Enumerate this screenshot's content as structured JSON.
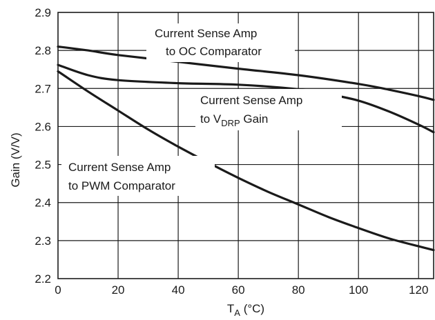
{
  "chart_data": {
    "type": "line",
    "xlabel": "T",
    "xlabel_sub": "A",
    "xlabel_unit": " (°C)",
    "ylabel": "Gain (V/V)",
    "xlim": [
      0,
      125
    ],
    "ylim": [
      2.2,
      2.9
    ],
    "xticks": [
      0,
      20,
      40,
      60,
      80,
      100,
      120
    ],
    "yticks": [
      2.2,
      2.3,
      2.4,
      2.5,
      2.6,
      2.7,
      2.8,
      2.9
    ],
    "ytick_labels": [
      "2.2",
      "2.3",
      "2.4",
      "2.5",
      "2.6",
      "2.7",
      "2.8",
      "2.9"
    ],
    "grid": true,
    "series": [
      {
        "name": "Current Sense Amp to OC Comparator",
        "x": [
          0,
          10,
          20,
          40,
          60,
          80,
          100,
          110,
          120,
          125
        ],
        "y": [
          2.81,
          2.8,
          2.788,
          2.77,
          2.752,
          2.735,
          2.712,
          2.697,
          2.68,
          2.67
        ]
      },
      {
        "name": "Current Sense Amp to VDRP Gain",
        "x": [
          0,
          10,
          20,
          40,
          60,
          80,
          90,
          100,
          110,
          120,
          125
        ],
        "y": [
          2.762,
          2.735,
          2.722,
          2.714,
          2.71,
          2.698,
          2.685,
          2.668,
          2.64,
          2.605,
          2.585
        ]
      },
      {
        "name": "Current Sense Amp to PWM Comparator",
        "x": [
          0,
          10,
          20,
          30,
          40,
          50,
          60,
          70,
          80,
          90,
          100,
          110,
          120,
          125
        ],
        "y": [
          2.745,
          2.692,
          2.642,
          2.592,
          2.547,
          2.505,
          2.465,
          2.428,
          2.395,
          2.362,
          2.333,
          2.306,
          2.285,
          2.275
        ]
      }
    ],
    "annotations": [
      {
        "lines": [
          "Current Sense Amp",
          "to OC Comparator"
        ]
      },
      {
        "lines": [
          "Current Sense Amp",
          "to V",
          "DRP",
          " Gain"
        ]
      },
      {
        "lines": [
          "Current Sense Amp",
          "to PWM Comparator"
        ]
      }
    ]
  }
}
